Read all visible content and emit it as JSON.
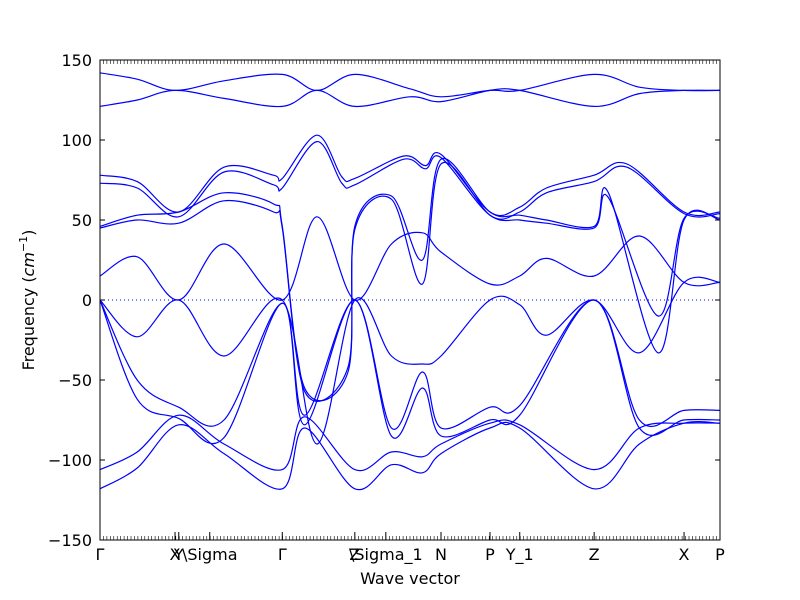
{
  "chart_data": {
    "type": "line",
    "title": "",
    "xlabel": "Wave vector",
    "ylabel": "Frequency ($cm^{-1}$)",
    "ylabel_text": "Frequency (",
    "ylabel_unit": "cm",
    "ylabel_exp": "−1",
    "ylabel_close": ")",
    "ylim": [
      -150,
      150
    ],
    "xlim": [
      0,
      1
    ],
    "yticks": [
      150,
      100,
      50,
      0,
      -50,
      -100,
      -150
    ],
    "ytick_labels": [
      "150",
      "100",
      "50",
      "0",
      "−50",
      "−100",
      "−150"
    ],
    "kpoints": [
      {
        "x": 0.0,
        "label": "Γ"
      },
      {
        "x": 0.121,
        "label": "X"
      },
      {
        "x": 0.127,
        "label": "Y"
      },
      {
        "x": 0.177,
        "label": "\\Sigma"
      },
      {
        "x": 0.294,
        "label": "Γ"
      },
      {
        "x": 0.411,
        "label": "Z"
      },
      {
        "x": 0.461,
        "label": "\\Sigma_1"
      },
      {
        "x": 0.55,
        "label": "N"
      },
      {
        "x": 0.629,
        "label": "P"
      },
      {
        "x": 0.677,
        "label": "Y_1"
      },
      {
        "x": 0.797,
        "label": "Z"
      },
      {
        "x": 0.942,
        "label": "X"
      },
      {
        "x": 1.0,
        "label": "P"
      }
    ],
    "zero_line": {
      "y": 0,
      "style": "dotted",
      "color": "#0000ff"
    },
    "line_color": "#0000ff",
    "grid": false,
    "series": [
      {
        "x": [
          0,
          0.06,
          0.121,
          0.2,
          0.294,
          0.35,
          0.411,
          0.5,
          0.55,
          0.629,
          0.677,
          0.797,
          0.87,
          0.942,
          1
        ],
        "y": [
          142,
          138,
          131,
          137,
          141,
          131,
          141,
          132,
          127,
          131,
          131,
          141,
          133,
          131,
          131
        ]
      },
      {
        "x": [
          0,
          0.06,
          0.121,
          0.2,
          0.294,
          0.35,
          0.411,
          0.5,
          0.55,
          0.629,
          0.677,
          0.797,
          0.87,
          0.942,
          1
        ],
        "y": [
          121,
          125,
          131,
          126,
          121,
          131,
          121,
          127,
          124,
          131,
          131,
          121,
          129,
          131,
          131
        ]
      },
      {
        "x": [
          0,
          0.06,
          0.127,
          0.2,
          0.28,
          0.294,
          0.35,
          0.39,
          0.411,
          0.49,
          0.525,
          0.55,
          0.629,
          0.677,
          0.72,
          0.797,
          0.85,
          0.942,
          1
        ],
        "y": [
          78,
          74,
          55,
          83,
          78,
          76,
          103,
          77,
          76,
          90,
          84,
          91,
          55,
          58,
          70,
          78,
          85,
          55,
          55
        ]
      },
      {
        "x": [
          0,
          0.06,
          0.127,
          0.2,
          0.28,
          0.294,
          0.35,
          0.39,
          0.411,
          0.49,
          0.525,
          0.55,
          0.629,
          0.677,
          0.72,
          0.797,
          0.85,
          0.942,
          1
        ],
        "y": [
          73,
          70,
          52,
          80,
          72,
          70,
          99,
          73,
          72,
          88,
          82,
          89,
          53,
          55,
          67,
          74,
          83,
          54,
          54
        ]
      },
      {
        "x": [
          0,
          0.06,
          0.127,
          0.2,
          0.28,
          0.294,
          0.33,
          0.4,
          0.411,
          0.47,
          0.52,
          0.55,
          0.629,
          0.677,
          0.72,
          0.797,
          0.82,
          0.9,
          0.942,
          1
        ],
        "y": [
          46,
          53,
          55,
          67,
          60,
          46,
          -55,
          -45,
          46,
          65,
          25,
          88,
          55,
          53,
          50,
          46,
          67,
          -33,
          50,
          50
        ]
      },
      {
        "x": [
          0,
          0.06,
          0.127,
          0.2,
          0.28,
          0.294,
          0.33,
          0.4,
          0.411,
          0.47,
          0.52,
          0.55,
          0.629,
          0.677,
          0.72,
          0.797,
          0.82,
          0.9,
          0.942,
          1
        ],
        "y": [
          45,
          50,
          48,
          62,
          55,
          45,
          -57,
          -42,
          44,
          63,
          10,
          85,
          53,
          50,
          48,
          45,
          64,
          -10,
          51,
          51
        ]
      },
      {
        "x": [
          0,
          0.06,
          0.127,
          0.2,
          0.294,
          0.35,
          0.411,
          0.47,
          0.52,
          0.55,
          0.629,
          0.677,
          0.72,
          0.797,
          0.87,
          0.942,
          1
        ],
        "y": [
          15,
          27,
          0,
          35,
          0,
          52,
          0,
          35,
          42,
          30,
          10,
          15,
          26,
          15,
          40,
          11,
          11
        ]
      },
      {
        "x": [
          0,
          0.06,
          0.127,
          0.2,
          0.294,
          0.35,
          0.411,
          0.47,
          0.52,
          0.55,
          0.629,
          0.677,
          0.72,
          0.797,
          0.87,
          0.942,
          1
        ],
        "y": [
          0,
          -23,
          0,
          -35,
          0,
          -90,
          0,
          -35,
          -40,
          -35,
          0,
          -3,
          -22,
          0,
          -33,
          11,
          11
        ]
      },
      {
        "x": [
          0,
          0.06,
          0.127,
          0.2,
          0.294,
          0.33,
          0.411,
          0.47,
          0.52,
          0.55,
          0.629,
          0.677,
          0.797,
          0.87,
          0.942,
          1
        ],
        "y": [
          0,
          -50,
          -67,
          -75,
          -2,
          -72,
          0,
          -80,
          -45,
          -80,
          -67,
          -66,
          0,
          -75,
          -69,
          -69
        ]
      },
      {
        "x": [
          0,
          0.06,
          0.127,
          0.2,
          0.294,
          0.33,
          0.411,
          0.47,
          0.52,
          0.55,
          0.629,
          0.677,
          0.797,
          0.87,
          0.942,
          1
        ],
        "y": [
          0,
          -62,
          -74,
          -86,
          -2,
          -78,
          0,
          -85,
          -55,
          -85,
          -75,
          -72,
          0,
          -80,
          -75,
          -75
        ]
      },
      {
        "x": [
          0,
          0.06,
          0.127,
          0.2,
          0.294,
          0.33,
          0.411,
          0.47,
          0.52,
          0.55,
          0.629,
          0.677,
          0.797,
          0.87,
          0.942,
          1
        ],
        "y": [
          -106,
          -95,
          -72,
          -90,
          -106,
          -73,
          -106,
          -95,
          -98,
          -90,
          -77,
          -78,
          -106,
          -80,
          -77,
          -77
        ]
      },
      {
        "x": [
          0,
          0.06,
          0.127,
          0.2,
          0.294,
          0.33,
          0.411,
          0.47,
          0.52,
          0.55,
          0.629,
          0.677,
          0.797,
          0.87,
          0.942,
          1
        ],
        "y": [
          -118,
          -105,
          -78,
          -96,
          -118,
          -80,
          -118,
          -103,
          -108,
          -96,
          -80,
          -80,
          -118,
          -90,
          -77,
          -77
        ]
      }
    ]
  }
}
